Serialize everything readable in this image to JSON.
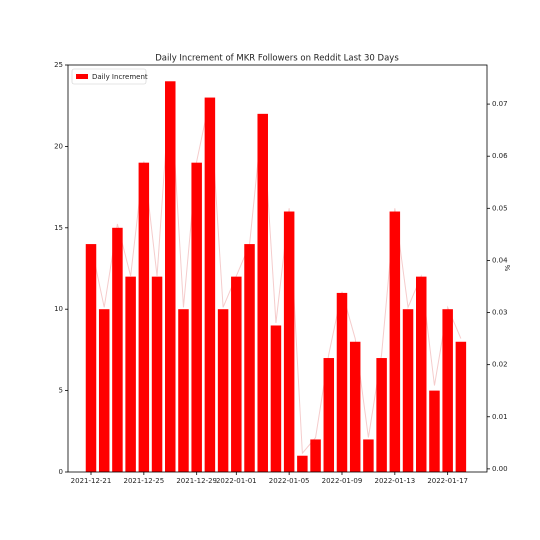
{
  "chart_data": {
    "type": "bar",
    "title": "Daily Increment of MKR Followers on Reddit Last 30 Days",
    "categories": [
      "2021-12-21",
      null,
      null,
      null,
      "2021-12-25",
      null,
      null,
      null,
      "2021-12-29",
      null,
      null,
      "2022-01-01",
      null,
      null,
      null,
      "2022-01-05",
      null,
      null,
      null,
      "2022-01-09",
      null,
      null,
      null,
      "2022-01-13",
      null,
      null,
      null,
      "2022-01-17",
      null
    ],
    "series": [
      {
        "name": "Daily Increment",
        "color": "#ff0000",
        "values": [
          14,
          10,
          15,
          12,
          19,
          12,
          24,
          10,
          19,
          23,
          10,
          12,
          14,
          22,
          9,
          16,
          1,
          2,
          7,
          11,
          8,
          2,
          7,
          16,
          10,
          12,
          5,
          10,
          8
        ]
      },
      {
        "type": "line",
        "axis": "y2",
        "color": "#f5cccc",
        "values": [
          0.043,
          0.031,
          0.047,
          0.037,
          0.059,
          0.037,
          0.074,
          0.031,
          0.059,
          0.071,
          0.031,
          0.037,
          0.043,
          0.068,
          0.028,
          0.05,
          0.003,
          0.006,
          0.022,
          0.034,
          0.025,
          0.006,
          0.022,
          0.05,
          0.031,
          0.037,
          0.016,
          0.031,
          0.025
        ]
      }
    ],
    "ylim": [
      0,
      25
    ],
    "yticks": [
      0,
      5,
      10,
      15,
      20,
      25
    ],
    "y2label": "%",
    "y2lim": [
      -0.0006,
      0.0775
    ],
    "y2ticks": [
      {
        "value": 0,
        "label": "0.00"
      },
      {
        "value": 0.01,
        "label": "0.01"
      },
      {
        "value": 0.02,
        "label": "0.02"
      },
      {
        "value": 0.03,
        "label": "0.03"
      },
      {
        "value": 0.04,
        "label": "0.04"
      },
      {
        "value": 0.05,
        "label": "0.05"
      },
      {
        "value": 0.06,
        "label": "0.06"
      },
      {
        "value": 0.07,
        "label": "0.07"
      }
    ],
    "legend": "upper left",
    "grid": false
  }
}
